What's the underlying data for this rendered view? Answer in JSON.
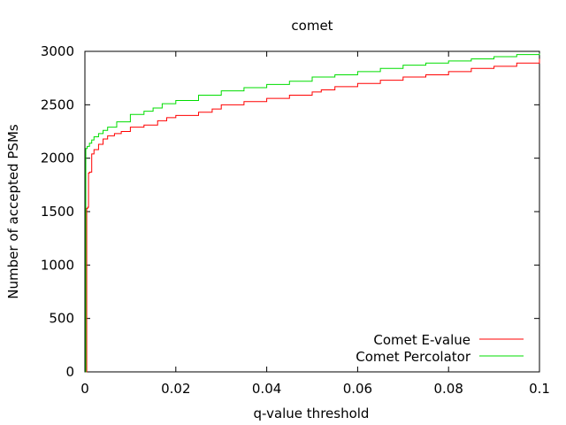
{
  "chart_data": {
    "type": "line",
    "title": "comet",
    "xlabel": "q-value threshold",
    "ylabel": "Number of accepted PSMs",
    "xlim": [
      0,
      0.1
    ],
    "ylim": [
      0,
      3000
    ],
    "xticks": [
      0,
      0.02,
      0.04,
      0.06,
      0.08,
      0.1
    ],
    "xtick_labels": [
      "0",
      "0.02",
      "0.04",
      "0.06",
      "0.08",
      "0.1"
    ],
    "yticks": [
      0,
      500,
      1000,
      1500,
      2000,
      2500,
      3000
    ],
    "ytick_labels": [
      "0",
      "500",
      "1000",
      "1500",
      "2000",
      "2500",
      "3000"
    ],
    "grid": false,
    "legend_position": "bottom-right",
    "series": [
      {
        "name": "Comet E-value",
        "color": "#ff0000",
        "x": [
          0.0003,
          0.0004,
          0.0006,
          0.0008,
          0.001,
          0.0015,
          0.002,
          0.003,
          0.004,
          0.005,
          0.0065,
          0.008,
          0.01,
          0.013,
          0.016,
          0.018,
          0.02,
          0.025,
          0.028,
          0.03,
          0.035,
          0.04,
          0.045,
          0.05,
          0.052,
          0.055,
          0.06,
          0.065,
          0.07,
          0.075,
          0.08,
          0.085,
          0.09,
          0.095,
          0.1
        ],
        "y": [
          0,
          1530,
          1540,
          1860,
          1870,
          2040,
          2080,
          2130,
          2180,
          2210,
          2230,
          2250,
          2290,
          2310,
          2350,
          2380,
          2400,
          2430,
          2460,
          2500,
          2530,
          2560,
          2590,
          2620,
          2640,
          2670,
          2700,
          2730,
          2760,
          2780,
          2810,
          2840,
          2860,
          2890,
          2930
        ]
      },
      {
        "name": "Comet Percolator",
        "color": "#00dd00",
        "x": [
          0.0001,
          0.0002,
          0.0005,
          0.001,
          0.0015,
          0.002,
          0.003,
          0.004,
          0.005,
          0.007,
          0.01,
          0.013,
          0.015,
          0.017,
          0.02,
          0.025,
          0.03,
          0.035,
          0.04,
          0.045,
          0.05,
          0.055,
          0.06,
          0.065,
          0.07,
          0.075,
          0.08,
          0.085,
          0.09,
          0.095,
          0.1
        ],
        "y": [
          0,
          2090,
          2110,
          2140,
          2170,
          2200,
          2230,
          2260,
          2290,
          2340,
          2410,
          2440,
          2470,
          2510,
          2540,
          2590,
          2630,
          2660,
          2690,
          2720,
          2760,
          2780,
          2810,
          2840,
          2870,
          2890,
          2910,
          2930,
          2950,
          2970,
          2980
        ]
      }
    ]
  }
}
